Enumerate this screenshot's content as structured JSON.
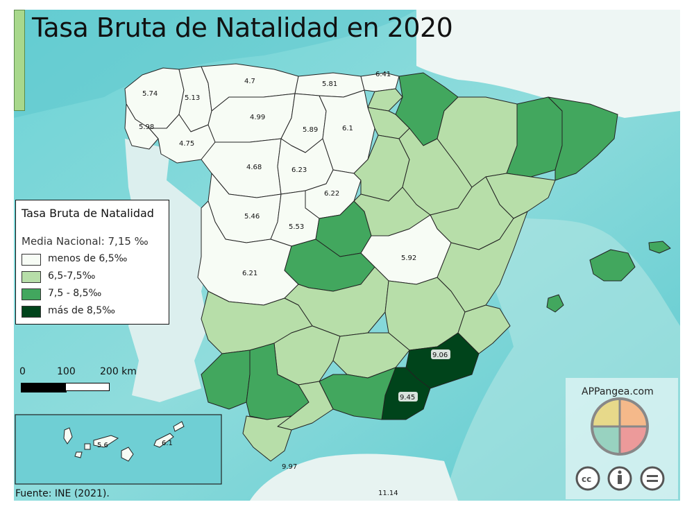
{
  "title": "Tasa Bruta de Natalidad en 2020",
  "legend": {
    "title": "Tasa Bruta de Natalidad",
    "subtitle": "Media Nacional: 7,15 ‰",
    "classes": [
      {
        "label": "menos de 6,5‰",
        "color": "#f7fcf5"
      },
      {
        "label": "6,5-7,5‰",
        "color": "#b7dea9"
      },
      {
        "label": "7,5 - 8,5‰",
        "color": "#42a75e"
      },
      {
        "label": "más de 8,5‰",
        "color": "#00441b"
      }
    ]
  },
  "scale_bar": {
    "ticks": [
      "0",
      "100",
      "200 km"
    ]
  },
  "source": "Fuente: INE (2021).",
  "brand": "APPangea.com",
  "license_icons": [
    "cc-icon",
    "attribution-icon",
    "no-derivatives-icon"
  ],
  "province_values": {
    "a_coruna": "5.74",
    "lugo": "5.13",
    "pontevedra": "5.98",
    "ourense": "4.75",
    "asturias": "4.7",
    "cantabria": "5.81",
    "bizkaia": "6.41",
    "leon": "4.99",
    "palencia": "5.89",
    "burgos": "6.1",
    "zamora": "4.68",
    "valladolid": "6.23",
    "soria_segovia": "6.22",
    "salamanca": "5.46",
    "avila": "5.53",
    "caceres": "6.21",
    "cuenca": "5.92",
    "murcia": "9.06",
    "almeria": "9.45",
    "ceuta": "9.97",
    "melilla": "11.14",
    "las_palmas": "6.1",
    "santa_cruz": "5.6"
  }
}
